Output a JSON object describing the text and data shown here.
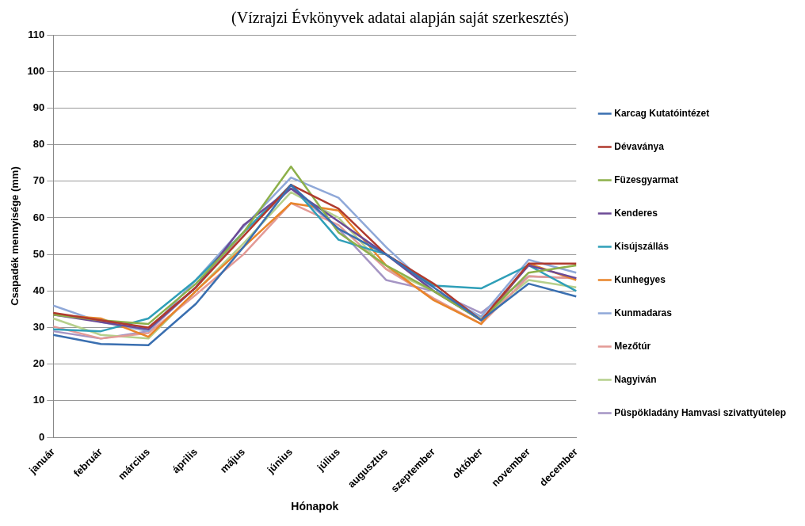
{
  "chart_data": {
    "type": "line",
    "subtitle": "(Vízrajzi Évkönyvek adatai alapján saját szerkesztés)",
    "xlabel": "Hónapok",
    "ylabel": "Csapadék mennyisége (mm)",
    "categories": [
      "január",
      "február",
      "március",
      "április",
      "május",
      "június",
      "július",
      "augusztus",
      "szeptember",
      "október",
      "november",
      "december"
    ],
    "ylim": [
      0,
      110
    ],
    "yticks": [
      0,
      10,
      20,
      30,
      40,
      50,
      60,
      70,
      80,
      90,
      100,
      110
    ],
    "grid": "y",
    "legend": "right",
    "marker": "none",
    "series": [
      {
        "name": "Karcag Kutatóintézet",
        "color": "#3a6fb0",
        "values": [
          28,
          25.5,
          25.2,
          36.5,
          52,
          69,
          57,
          50,
          41,
          32,
          42,
          38.5
        ]
      },
      {
        "name": "Dévaványa",
        "color": "#b03a2e",
        "values": [
          34,
          32,
          30,
          41,
          55,
          69,
          62.5,
          50,
          42,
          32,
          47.5,
          47.5
        ]
      },
      {
        "name": "Füzesgyarmat",
        "color": "#8db04a",
        "values": [
          33.5,
          32,
          31,
          42,
          56,
          74,
          56,
          47,
          40,
          32,
          45,
          47
        ]
      },
      {
        "name": "Kenderes",
        "color": "#6c4a96",
        "values": [
          33.5,
          31.5,
          29.5,
          41,
          58,
          68,
          59,
          50,
          40,
          32,
          47,
          43.5
        ]
      },
      {
        "name": "Kisújszállás",
        "color": "#2f9fb8",
        "values": [
          29.5,
          29,
          32.5,
          43,
          56,
          69,
          54,
          50,
          41.5,
          40.7,
          47,
          40
        ]
      },
      {
        "name": "Kunhegyes",
        "color": "#e8852a",
        "values": [
          33.5,
          32.5,
          27.5,
          40,
          52,
          64,
          62,
          47,
          37.5,
          31,
          47.5,
          43
        ]
      },
      {
        "name": "Kunmadaras",
        "color": "#8fa8d8",
        "values": [
          36,
          31.5,
          29,
          43,
          57.5,
          71,
          65.5,
          52,
          40,
          33,
          48.5,
          45
        ]
      },
      {
        "name": "Mezőtúr",
        "color": "#e39a96",
        "values": [
          30.3,
          27,
          28.5,
          39,
          50,
          64,
          58,
          46,
          38,
          31,
          44,
          43.5
        ]
      },
      {
        "name": "Nagyiván",
        "color": "#b6d08c",
        "values": [
          32.5,
          28,
          27,
          40,
          53,
          67,
          60,
          46,
          40,
          32.5,
          43,
          41
        ]
      },
      {
        "name": "Püspökladány Hamvasi szivattyútelep",
        "color": "#a595c4",
        "values": [
          29,
          27,
          29,
          41,
          56,
          68,
          57,
          43,
          40,
          34,
          44,
          43.5
        ]
      }
    ]
  }
}
